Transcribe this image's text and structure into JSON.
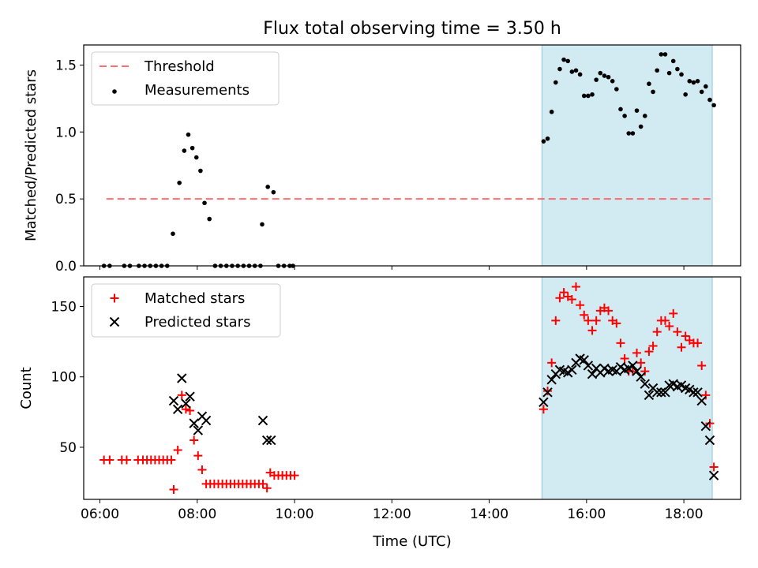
{
  "chart_data": [
    {
      "type": "scatter",
      "title": "Flux total observing time = 3.50 h",
      "xlabel": "",
      "ylabel": "Matched/Predicted stars",
      "ylim": [
        0,
        1.65
      ],
      "yticks": [
        "0.0",
        "0.5",
        "1.0",
        "1.5"
      ],
      "xlim": [
        "05:40",
        "19:10"
      ],
      "legend_position": "upper-left",
      "legend": [
        "Threshold",
        "Measurements"
      ],
      "shaded_region": {
        "x": [
          "15:05",
          "18:35"
        ],
        "color": "#add8e6"
      },
      "threshold": {
        "name": "Threshold",
        "value": 0.5,
        "x": [
          "06:08",
          "18:35"
        ],
        "color": "#ff5555",
        "style": "dashed"
      },
      "series": [
        {
          "name": "Measurements",
          "color": "#000000",
          "marker": "dot",
          "points": [
            [
              "06:05",
              0
            ],
            [
              "06:12",
              0
            ],
            [
              "06:30",
              0
            ],
            [
              "06:37",
              0
            ],
            [
              "06:48",
              0
            ],
            [
              "06:55",
              0
            ],
            [
              "07:02",
              0
            ],
            [
              "07:09",
              0
            ],
            [
              "07:16",
              0
            ],
            [
              "07:23",
              0
            ],
            [
              "07:30",
              0.24
            ],
            [
              "07:38",
              0.62
            ],
            [
              "07:44",
              0.86
            ],
            [
              "07:49",
              0.98
            ],
            [
              "07:54",
              0.88
            ],
            [
              "07:59",
              0.81
            ],
            [
              "08:04",
              0.71
            ],
            [
              "08:09",
              0.47
            ],
            [
              "08:15",
              0.35
            ],
            [
              "08:22",
              0
            ],
            [
              "08:29",
              0
            ],
            [
              "08:36",
              0
            ],
            [
              "08:43",
              0
            ],
            [
              "08:50",
              0
            ],
            [
              "08:57",
              0
            ],
            [
              "09:04",
              0
            ],
            [
              "09:11",
              0
            ],
            [
              "09:18",
              0
            ],
            [
              "09:20",
              0.31
            ],
            [
              "09:27",
              0.59
            ],
            [
              "09:34",
              0.55
            ],
            [
              "09:40",
              0
            ],
            [
              "09:47",
              0
            ],
            [
              "09:54",
              0
            ],
            [
              "09:58",
              0
            ],
            [
              "15:07",
              0.93
            ],
            [
              "15:12",
              0.95
            ],
            [
              "15:17",
              1.15
            ],
            [
              "15:22",
              1.37
            ],
            [
              "15:27",
              1.47
            ],
            [
              "15:32",
              1.54
            ],
            [
              "15:37",
              1.53
            ],
            [
              "15:42",
              1.45
            ],
            [
              "15:47",
              1.46
            ],
            [
              "15:52",
              1.43
            ],
            [
              "15:57",
              1.27
            ],
            [
              "16:02",
              1.27
            ],
            [
              "16:07",
              1.28
            ],
            [
              "16:12",
              1.39
            ],
            [
              "16:17",
              1.44
            ],
            [
              "16:22",
              1.42
            ],
            [
              "16:27",
              1.41
            ],
            [
              "16:32",
              1.38
            ],
            [
              "16:37",
              1.32
            ],
            [
              "16:42",
              1.17
            ],
            [
              "16:47",
              1.12
            ],
            [
              "16:52",
              0.99
            ],
            [
              "16:57",
              0.99
            ],
            [
              "17:02",
              1.16
            ],
            [
              "17:07",
              1.04
            ],
            [
              "17:12",
              1.12
            ],
            [
              "17:17",
              1.36
            ],
            [
              "17:22",
              1.3
            ],
            [
              "17:27",
              1.46
            ],
            [
              "17:32",
              1.58
            ],
            [
              "17:37",
              1.58
            ],
            [
              "17:42",
              1.44
            ],
            [
              "17:47",
              1.53
            ],
            [
              "17:52",
              1.47
            ],
            [
              "17:57",
              1.43
            ],
            [
              "18:02",
              1.28
            ],
            [
              "18:07",
              1.38
            ],
            [
              "18:12",
              1.37
            ],
            [
              "18:17",
              1.38
            ],
            [
              "18:22",
              1.3
            ],
            [
              "18:27",
              1.34
            ],
            [
              "18:32",
              1.24
            ],
            [
              "18:37",
              1.2
            ]
          ]
        }
      ]
    },
    {
      "type": "scatter",
      "title": "",
      "xlabel": "Time (UTC)",
      "ylabel": "Count",
      "ylim": [
        13,
        171
      ],
      "yticks": [
        "50",
        "100",
        "150"
      ],
      "xlim": [
        "05:40",
        "19:10"
      ],
      "xticks": [
        "06:00",
        "08:00",
        "10:00",
        "12:00",
        "14:00",
        "16:00",
        "18:00"
      ],
      "legend_position": "upper-left",
      "legend": [
        "Matched stars",
        "Predicted stars"
      ],
      "shaded_region": {
        "x": [
          "15:05",
          "18:35"
        ],
        "color": "#add8e6"
      },
      "series": [
        {
          "name": "Matched stars",
          "color": "#ff0000",
          "marker": "plus",
          "points": [
            [
              "06:05",
              41
            ],
            [
              "06:12",
              41
            ],
            [
              "06:27",
              41
            ],
            [
              "06:33",
              41
            ],
            [
              "06:47",
              41
            ],
            [
              "06:53",
              41
            ],
            [
              "06:58",
              41
            ],
            [
              "07:03",
              41
            ],
            [
              "07:08",
              41
            ],
            [
              "07:13",
              41
            ],
            [
              "07:18",
              41
            ],
            [
              "07:23",
              41
            ],
            [
              "07:28",
              41
            ],
            [
              "07:31",
              20
            ],
            [
              "07:36",
              48
            ],
            [
              "07:41",
              87
            ],
            [
              "07:46",
              77
            ],
            [
              "07:51",
              76
            ],
            [
              "07:56",
              55
            ],
            [
              "08:01",
              44
            ],
            [
              "08:06",
              34
            ],
            [
              "08:11",
              24
            ],
            [
              "08:16",
              24
            ],
            [
              "08:21",
              24
            ],
            [
              "08:26",
              24
            ],
            [
              "08:31",
              24
            ],
            [
              "08:36",
              24
            ],
            [
              "08:41",
              24
            ],
            [
              "08:46",
              24
            ],
            [
              "08:51",
              24
            ],
            [
              "08:56",
              24
            ],
            [
              "09:01",
              24
            ],
            [
              "09:06",
              24
            ],
            [
              "09:11",
              24
            ],
            [
              "09:16",
              24
            ],
            [
              "09:21",
              24
            ],
            [
              "09:26",
              21
            ],
            [
              "09:30",
              32
            ],
            [
              "09:35",
              30
            ],
            [
              "09:40",
              30
            ],
            [
              "09:45",
              30
            ],
            [
              "09:50",
              30
            ],
            [
              "09:55",
              30
            ],
            [
              "10:00",
              30
            ],
            [
              "15:07",
              77
            ],
            [
              "15:12",
              90
            ],
            [
              "15:17",
              110
            ],
            [
              "15:22",
              140
            ],
            [
              "15:27",
              156
            ],
            [
              "15:32",
              160
            ],
            [
              "15:37",
              157
            ],
            [
              "15:42",
              155
            ],
            [
              "15:47",
              164
            ],
            [
              "15:52",
              151
            ],
            [
              "15:57",
              144
            ],
            [
              "16:02",
              140
            ],
            [
              "16:07",
              133
            ],
            [
              "16:12",
              140
            ],
            [
              "16:17",
              147
            ],
            [
              "16:22",
              149
            ],
            [
              "16:27",
              147
            ],
            [
              "16:32",
              140
            ],
            [
              "16:37",
              138
            ],
            [
              "16:42",
              124
            ],
            [
              "16:47",
              113
            ],
            [
              "16:52",
              104
            ],
            [
              "16:57",
              104
            ],
            [
              "17:02",
              117
            ],
            [
              "17:07",
              110
            ],
            [
              "17:12",
              104
            ],
            [
              "17:17",
              118
            ],
            [
              "17:22",
              122
            ],
            [
              "17:27",
              132
            ],
            [
              "17:32",
              140
            ],
            [
              "17:37",
              140
            ],
            [
              "17:42",
              136
            ],
            [
              "17:47",
              145
            ],
            [
              "17:52",
              132
            ],
            [
              "17:57",
              121
            ],
            [
              "18:02",
              129
            ],
            [
              "18:07",
              126
            ],
            [
              "18:12",
              124
            ],
            [
              "18:17",
              124
            ],
            [
              "18:22",
              108
            ],
            [
              "18:27",
              87
            ],
            [
              "18:32",
              67
            ],
            [
              "18:37",
              36
            ]
          ]
        },
        {
          "name": "Predicted stars",
          "color": "#000000",
          "marker": "x",
          "points": [
            [
              "07:31",
              83
            ],
            [
              "07:36",
              77
            ],
            [
              "07:41",
              99
            ],
            [
              "07:46",
              81
            ],
            [
              "07:51",
              86
            ],
            [
              "07:56",
              67
            ],
            [
              "08:01",
              62
            ],
            [
              "08:06",
              72
            ],
            [
              "08:11",
              69
            ],
            [
              "09:21",
              69
            ],
            [
              "09:26",
              55
            ],
            [
              "09:31",
              55
            ],
            [
              "15:07",
              82
            ],
            [
              "15:12",
              89
            ],
            [
              "15:17",
              98
            ],
            [
              "15:22",
              102
            ],
            [
              "15:27",
              105
            ],
            [
              "15:32",
              104
            ],
            [
              "15:37",
              103
            ],
            [
              "15:42",
              105
            ],
            [
              "15:47",
              110
            ],
            [
              "15:52",
              113
            ],
            [
              "15:57",
              112
            ],
            [
              "16:02",
              108
            ],
            [
              "16:07",
              102
            ],
            [
              "16:12",
              106
            ],
            [
              "16:17",
              103
            ],
            [
              "16:22",
              106
            ],
            [
              "16:27",
              104
            ],
            [
              "16:32",
              105
            ],
            [
              "16:37",
              104
            ],
            [
              "16:42",
              107
            ],
            [
              "16:47",
              105
            ],
            [
              "16:52",
              106
            ],
            [
              "16:57",
              108
            ],
            [
              "17:02",
              104
            ],
            [
              "17:07",
              100
            ],
            [
              "17:12",
              95
            ],
            [
              "17:17",
              87
            ],
            [
              "17:22",
              92
            ],
            [
              "17:27",
              89
            ],
            [
              "17:32",
              89
            ],
            [
              "17:37",
              89
            ],
            [
              "17:42",
              94
            ],
            [
              "17:47",
              95
            ],
            [
              "17:52",
              93
            ],
            [
              "17:57",
              94
            ],
            [
              "18:02",
              92
            ],
            [
              "18:07",
              91
            ],
            [
              "18:12",
              89
            ],
            [
              "18:17",
              89
            ],
            [
              "18:22",
              83
            ],
            [
              "18:27",
              65
            ],
            [
              "18:32",
              55
            ],
            [
              "18:37",
              30
            ]
          ]
        }
      ]
    }
  ]
}
